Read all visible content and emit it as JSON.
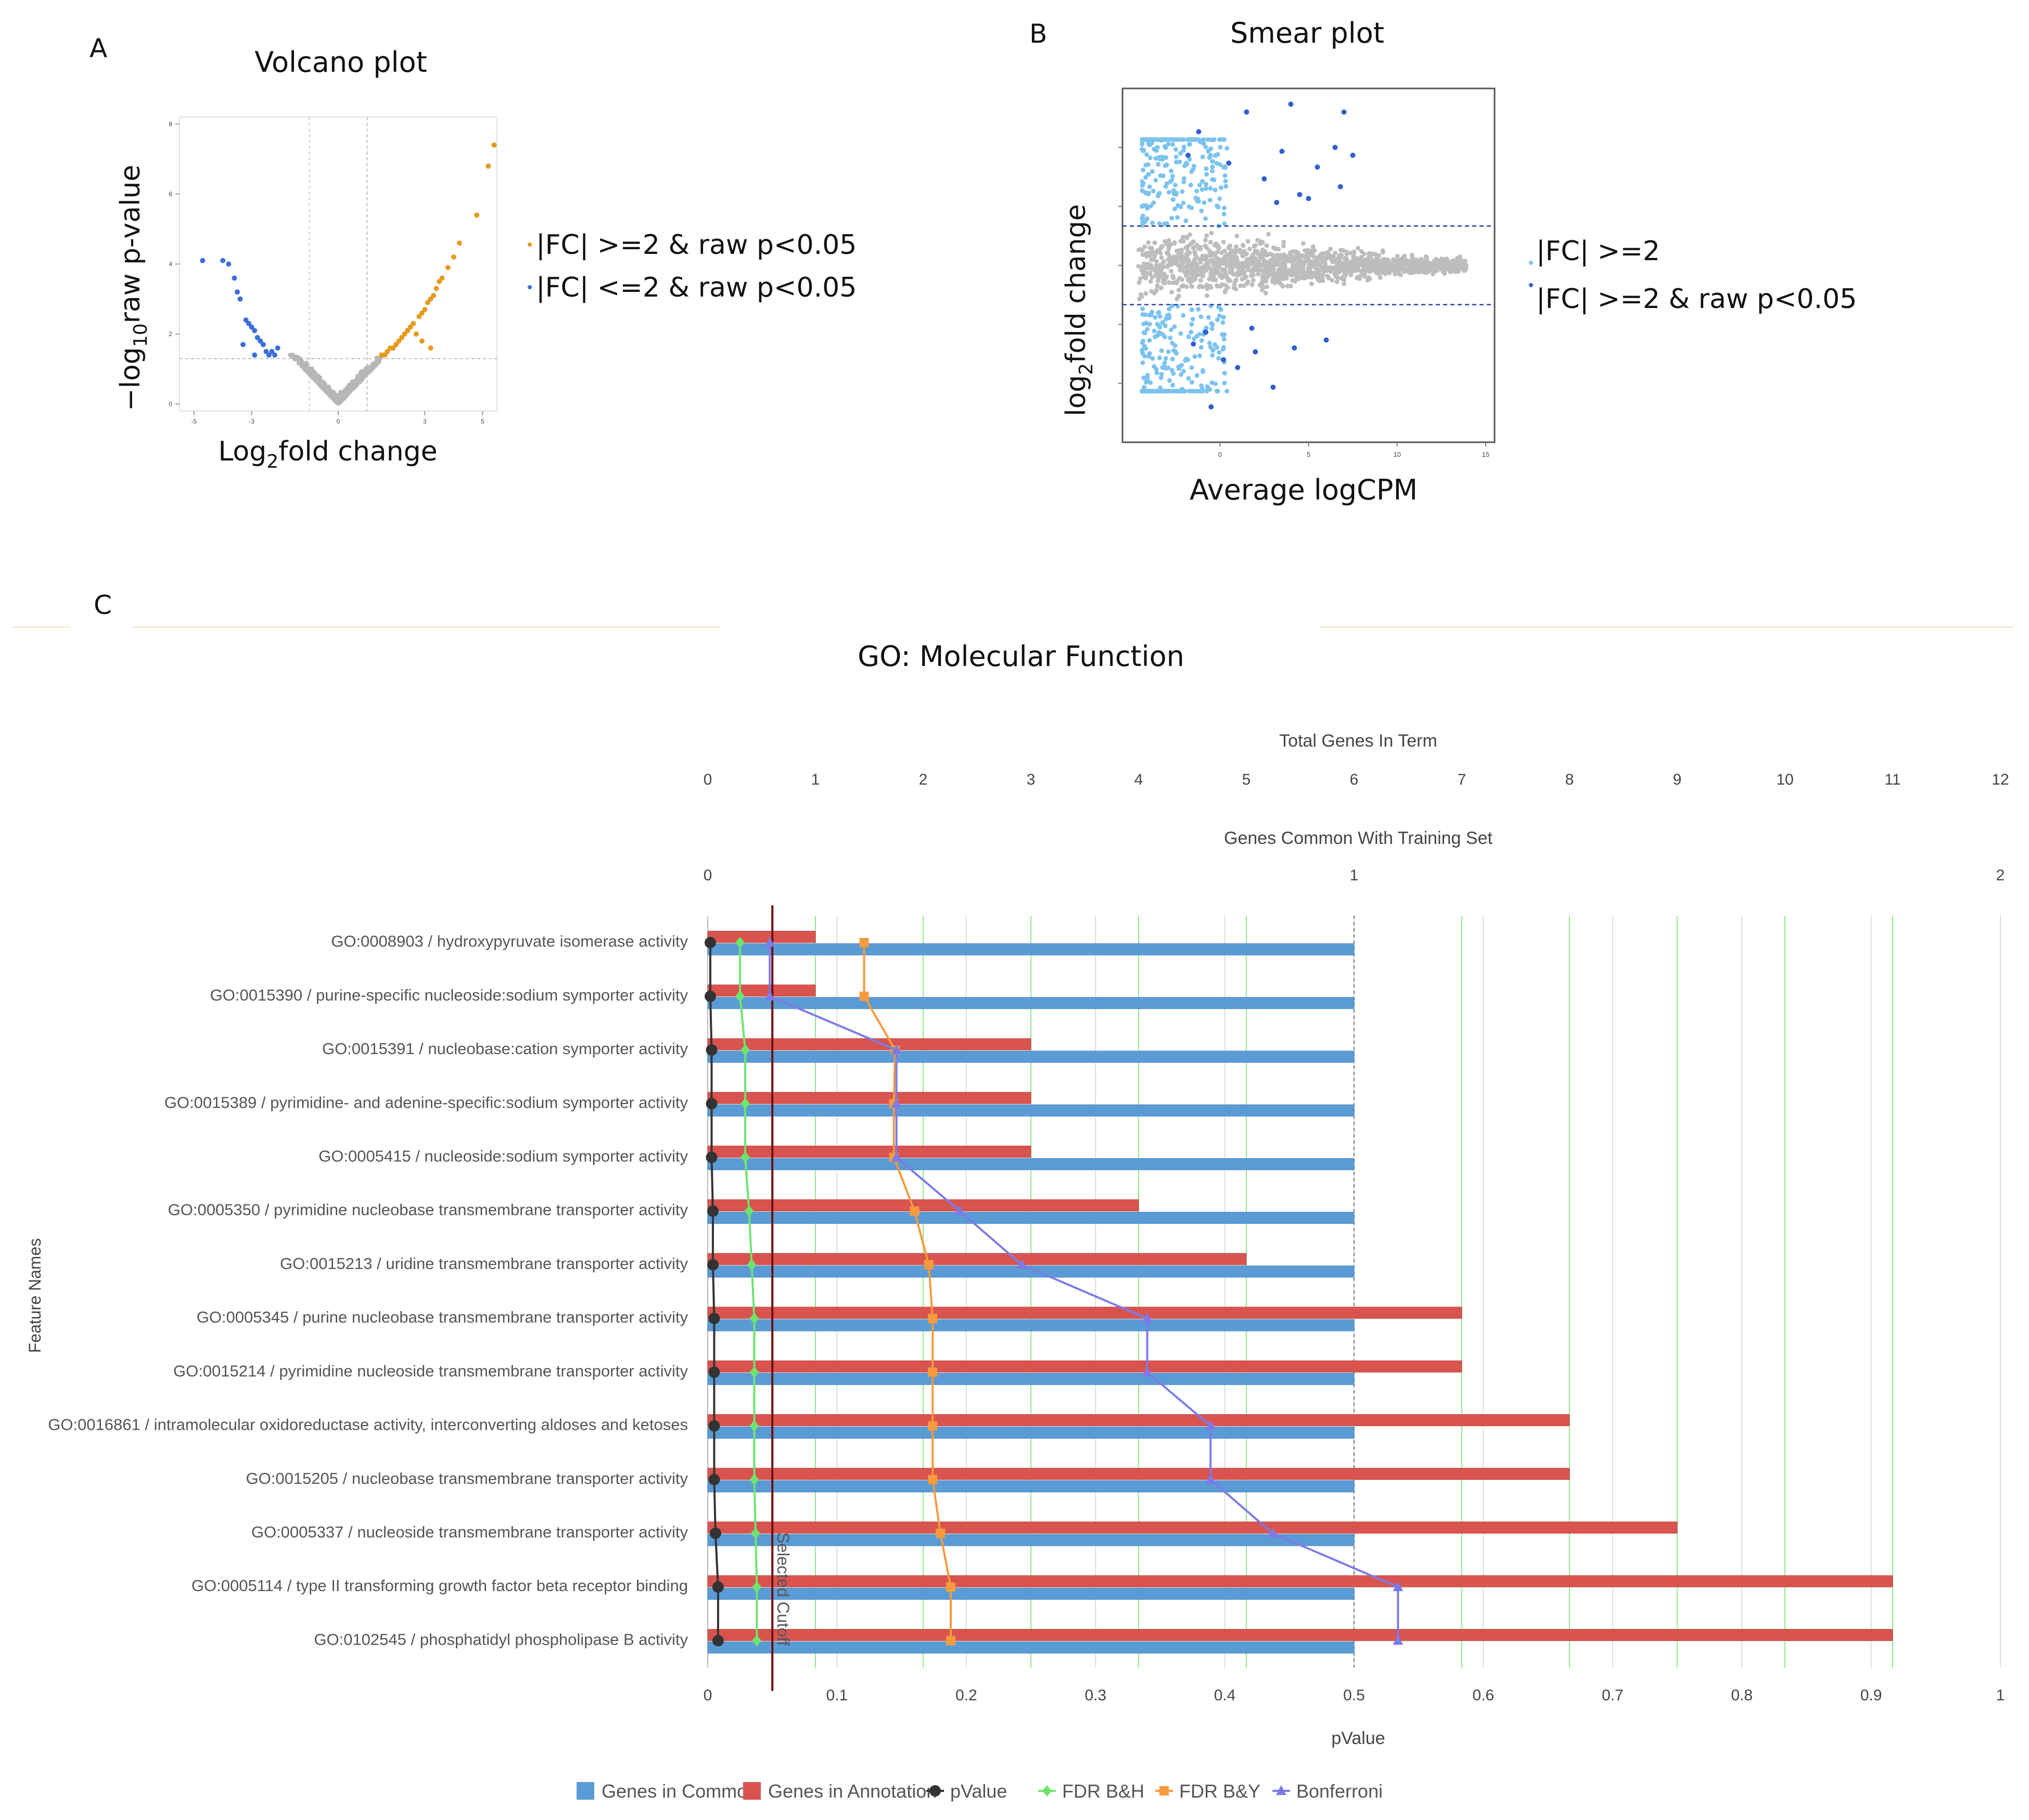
{
  "panels": {
    "a": {
      "letter": "A",
      "title": "Volcano plot",
      "xlabel_main": "Log",
      "xlabel_sub": "2",
      "xlabel_rest": "fold change",
      "ylabel_a": "−log",
      "ylabel_sub": "10",
      "ylabel_rest": "raw p-value"
    },
    "b": {
      "letter": "B",
      "title": "Smear plot",
      "xlabel": "Average logCPM",
      "ylabel_main": "log",
      "ylabel_sub": "2",
      "ylabel_rest": "fold change"
    },
    "c": {
      "letter": "C"
    }
  },
  "chart_data": [
    {
      "type": "scatter",
      "title": "Volcano plot",
      "xlabel": "Log2fold change",
      "ylabel": "-log10raw p-value",
      "xlim": [
        -5.5,
        5.5
      ],
      "ylim": [
        -0.2,
        8.2
      ],
      "xticks": [
        "-5",
        "-3",
        "0",
        "3",
        "5"
      ],
      "yticks": [
        "0",
        "2",
        "4",
        "6",
        "8"
      ],
      "thresholds": {
        "x": [
          -1,
          1
        ],
        "y": 1.3
      },
      "series": [
        {
          "name": "|FC| >=2 & raw p<0.05",
          "color": "#e69a1e",
          "x": [
            5.4,
            5.2,
            4.8,
            4.2,
            4.0,
            3.8,
            3.6,
            3.5,
            3.4,
            3.3,
            3.2,
            3.1,
            3.0,
            2.9,
            2.8,
            2.6,
            2.5,
            2.4,
            2.3,
            2.2,
            2.1,
            2.0,
            1.9,
            1.8,
            1.7,
            1.6,
            1.5,
            2.7,
            3.2,
            2.9
          ],
          "y": [
            7.4,
            6.8,
            5.4,
            4.6,
            4.2,
            3.9,
            3.6,
            3.5,
            3.3,
            3.1,
            3.0,
            2.9,
            2.7,
            2.6,
            2.5,
            2.3,
            2.2,
            2.1,
            2.0,
            1.9,
            1.8,
            1.7,
            1.6,
            1.6,
            1.5,
            1.4,
            1.4,
            2.0,
            1.6,
            1.8
          ]
        },
        {
          "name": "|FC| <=2 & raw p<0.05",
          "color": "#3b6fd8",
          "x": [
            -4.7,
            -4.0,
            -3.8,
            -3.6,
            -3.5,
            -3.4,
            -3.2,
            -3.1,
            -3.0,
            -2.9,
            -2.8,
            -2.7,
            -2.6,
            -2.5,
            -2.4,
            -2.3,
            -2.2,
            -2.1,
            -3.3,
            -2.9
          ],
          "y": [
            4.1,
            4.1,
            4.0,
            3.6,
            3.2,
            3.0,
            2.4,
            2.3,
            2.2,
            2.1,
            1.9,
            1.8,
            1.7,
            1.5,
            1.4,
            1.5,
            1.4,
            1.6,
            1.7,
            1.4
          ]
        }
      ]
    },
    {
      "type": "scatter",
      "title": "Smear plot",
      "xlabel": "Average logCPM",
      "ylabel": "log2fold change",
      "xlim": [
        -5.5,
        15.5
      ],
      "ylim": [
        -4.5,
        4.5
      ],
      "xticks": [
        "0",
        "5",
        "10",
        "15"
      ],
      "thresholds": {
        "y": [
          -1,
          1
        ]
      },
      "series": [
        {
          "name": "|FC| >=2",
          "color": "#7cc3ee"
        },
        {
          "name": "|FC| >=2 & raw p<0.05",
          "color": "#2f5fd0",
          "x": [
            -1.8,
            -1.2,
            0.5,
            1.5,
            2.5,
            3.5,
            4.0,
            4.5,
            5.5,
            6.5,
            7.0,
            7.5,
            2.0,
            1.0,
            3.0,
            -0.5,
            4.2,
            6.0,
            0.2,
            1.8,
            3.2,
            5.0,
            6.8,
            -1.5,
            -0.8
          ],
          "y": [
            2.8,
            3.4,
            2.6,
            3.9,
            2.2,
            2.9,
            4.1,
            1.8,
            2.5,
            3.0,
            3.9,
            2.8,
            -2.2,
            -2.6,
            -3.1,
            -3.6,
            -2.1,
            -1.9,
            -2.4,
            -1.6,
            1.6,
            1.7,
            2.0,
            -2.0,
            -1.7
          ]
        }
      ]
    },
    {
      "type": "bar",
      "title": "GO: Molecular Function",
      "ylabel": "Feature Names",
      "xlabel": "pValue",
      "top_axis_1_label": "Total Genes In Term",
      "top_axis_1_ticks": [
        "0",
        "1",
        "2",
        "3",
        "4",
        "5",
        "6",
        "7",
        "8",
        "9",
        "10",
        "11",
        "12"
      ],
      "top_axis_2_label": "Genes Common With Training Set",
      "top_axis_2_ticks": [
        "0",
        "1",
        "2"
      ],
      "bottom_axis_ticks": [
        "0",
        "0.1",
        "0.2",
        "0.3",
        "0.4",
        "0.5",
        "0.6",
        "0.7",
        "0.8",
        "0.9",
        "1"
      ],
      "cutoff": {
        "label": "Selected Cutoff",
        "pvalue": 0.05
      },
      "categories": [
        "GO:0008903 / hydroxypyruvate isomerase activity",
        "GO:0015390 / purine-specific nucleoside:sodium symporter activity",
        "GO:0015391 / nucleobase:cation symporter activity",
        "GO:0015389 / pyrimidine- and adenine-specific:sodium symporter activity",
        "GO:0005415 / nucleoside:sodium symporter activity",
        "GO:0005350 / pyrimidine nucleobase transmembrane transporter activity",
        "GO:0015213 / uridine transmembrane transporter activity",
        "GO:0005345 / purine nucleobase transmembrane transporter activity",
        "GO:0015214 / pyrimidine nucleoside transmembrane transporter activity",
        "GO:0016861 / intramolecular oxidoreductase activity, interconverting aldoses and ketoses",
        "GO:0015205 / nucleobase transmembrane transporter activity",
        "GO:0005337 / nucleoside transmembrane transporter activity",
        "GO:0005114 / type II transforming growth factor beta receptor binding",
        "GO:0102545 / phosphatidyl phospholipase B activity"
      ],
      "series": [
        {
          "name": "Genes in Common",
          "color": "#5b9bd5",
          "axis": "genes_common",
          "values": [
            1,
            1,
            1,
            1,
            1,
            1,
            1,
            1,
            1,
            1,
            1,
            1,
            1,
            1
          ]
        },
        {
          "name": "Genes in Annotation",
          "color": "#d9534f",
          "axis": "total_genes",
          "values": [
            1,
            1,
            3,
            3,
            3,
            4,
            5,
            7,
            7,
            8,
            8,
            9,
            11,
            11
          ]
        },
        {
          "name": "pValue",
          "color": "#333333",
          "marker": "circle",
          "values": [
            0.002,
            0.002,
            0.003,
            0.003,
            0.003,
            0.004,
            0.004,
            0.005,
            0.005,
            0.005,
            0.005,
            0.006,
            0.008,
            0.008
          ]
        },
        {
          "name": "FDR B&H",
          "color": "#6ee46e",
          "marker": "diamond",
          "values": [
            0.025,
            0.025,
            0.029,
            0.029,
            0.029,
            0.032,
            0.034,
            0.036,
            0.036,
            0.036,
            0.036,
            0.037,
            0.038,
            0.038
          ]
        },
        {
          "name": "FDR B&Y",
          "color": "#f59a3d",
          "marker": "square",
          "values": [
            0.121,
            0.121,
            0.145,
            0.144,
            0.144,
            0.16,
            0.171,
            0.174,
            0.174,
            0.174,
            0.174,
            0.18,
            0.188,
            0.188
          ]
        },
        {
          "name": "Bonferroni",
          "color": "#7b7be8",
          "marker": "triangle",
          "values": [
            0.048,
            0.048,
            0.146,
            0.146,
            0.146,
            0.195,
            0.243,
            0.34,
            0.34,
            0.389,
            0.389,
            0.437,
            0.534,
            0.534
          ]
        }
      ]
    }
  ]
}
